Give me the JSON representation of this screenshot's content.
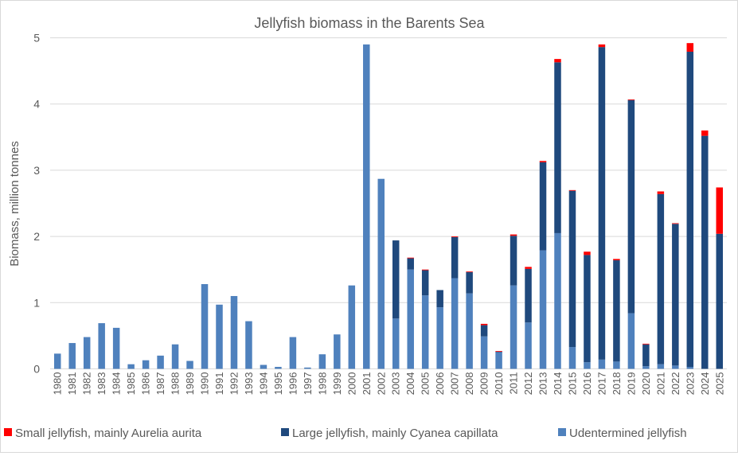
{
  "chart_data": {
    "type": "bar",
    "stacked": true,
    "title": "Jellyfish biomass in the Barents Sea",
    "xlabel": "",
    "ylabel": "Biomass, million tonnes",
    "ylim": [
      0,
      5
    ],
    "yticks": [
      0,
      1,
      2,
      3,
      4,
      5
    ],
    "grid": true,
    "legend_position": "bottom",
    "categories": [
      "1980",
      "1981",
      "1982",
      "1983",
      "1984",
      "1985",
      "1986",
      "1987",
      "1988",
      "1989",
      "1990",
      "1991",
      "1992",
      "1993",
      "1994",
      "1995",
      "1996",
      "1997",
      "1998",
      "1999",
      "2000",
      "2001",
      "2002",
      "2003",
      "2004",
      "2005",
      "2006",
      "2007",
      "2008",
      "2009",
      "2010",
      "2011",
      "2012",
      "2013",
      "2014",
      "2015",
      "2016",
      "2017",
      "2018",
      "2019",
      "2020",
      "2021",
      "2022",
      "2023",
      "2024",
      "2025"
    ],
    "series": [
      {
        "name": "Udentermined jellyfish",
        "color": "#4f81bd",
        "values": [
          0.23,
          0.39,
          0.48,
          0.69,
          0.62,
          0.07,
          0.13,
          0.2,
          0.37,
          0.12,
          1.28,
          0.97,
          1.1,
          0.72,
          0.06,
          0.03,
          0.48,
          0.02,
          0.22,
          0.52,
          1.26,
          4.9,
          2.87,
          0.76,
          1.5,
          1.11,
          0.93,
          1.37,
          1.14,
          0.49,
          0.25,
          1.26,
          0.7,
          1.79,
          2.05,
          0.33,
          0.1,
          0.14,
          0.11,
          0.84,
          0.04,
          0.07,
          0.05,
          0.03,
          0,
          0
        ]
      },
      {
        "name": "Large jellyfish, mainly Cyanea capillata",
        "color": "#1f497d",
        "values": [
          0,
          0,
          0,
          0,
          0,
          0,
          0,
          0,
          0,
          0,
          0,
          0,
          0,
          0,
          0,
          0,
          0,
          0,
          0,
          0,
          0,
          0,
          0,
          1.18,
          0.17,
          0.38,
          0.26,
          0.62,
          0.32,
          0.17,
          0.01,
          0.75,
          0.81,
          1.33,
          2.58,
          2.36,
          1.62,
          4.72,
          1.53,
          3.22,
          0.33,
          2.57,
          2.14,
          4.76,
          3.52,
          2.04
        ]
      },
      {
        "name": "Small jellyfish, mainly Aurelia aurita",
        "color": "#ff0000",
        "values": [
          0,
          0,
          0,
          0,
          0,
          0,
          0,
          0,
          0,
          0,
          0,
          0,
          0,
          0,
          0,
          0,
          0,
          0,
          0,
          0,
          0,
          0,
          0,
          0,
          0.01,
          0.01,
          0,
          0.01,
          0.01,
          0.02,
          0.01,
          0.02,
          0.03,
          0.02,
          0.05,
          0.01,
          0.05,
          0.04,
          0.02,
          0.01,
          0.01,
          0.04,
          0.01,
          0.13,
          0.08,
          0.7
        ]
      }
    ],
    "legend_order": [
      2,
      1,
      0
    ]
  }
}
